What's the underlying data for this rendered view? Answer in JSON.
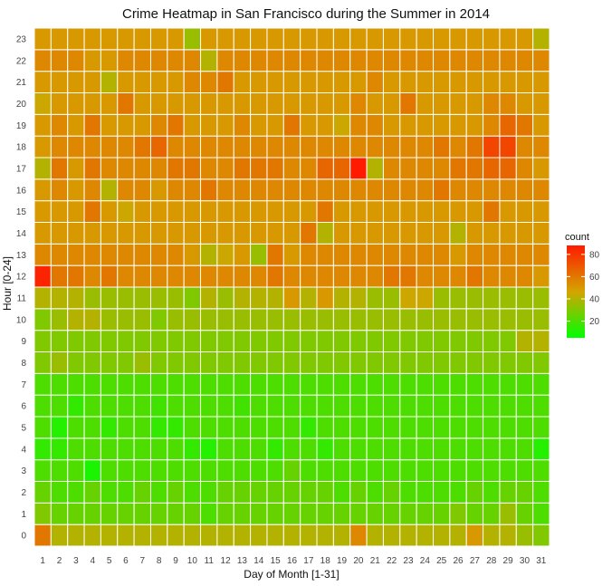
{
  "chart_data": {
    "type": "heatmap",
    "title": "Crime Heatmap in San Francisco during the Summer in 2014",
    "xlabel": "Day of Month [1-31]",
    "ylabel": "Hour [0-24]",
    "x": [
      1,
      2,
      3,
      4,
      5,
      6,
      7,
      8,
      9,
      10,
      11,
      12,
      13,
      14,
      15,
      16,
      17,
      18,
      19,
      20,
      21,
      22,
      23,
      24,
      25,
      26,
      27,
      28,
      29,
      30,
      31
    ],
    "y": [
      0,
      1,
      2,
      3,
      4,
      5,
      6,
      7,
      8,
      9,
      10,
      11,
      12,
      13,
      14,
      15,
      16,
      17,
      18,
      19,
      20,
      21,
      22,
      23
    ],
    "color_scale": {
      "low": "#00ff00",
      "mid": "#d4a400",
      "high": "#ff1a00",
      "domain": [
        5,
        88
      ],
      "legend_title": "count",
      "legend_ticks": [
        20,
        40,
        60,
        80
      ],
      "legend_position": "right"
    },
    "grid": false,
    "values": [
      [
        60,
        40,
        40,
        40,
        40,
        40,
        40,
        40,
        40,
        40,
        40,
        40,
        40,
        40,
        40,
        40,
        40,
        40,
        40,
        55,
        40,
        40,
        40,
        40,
        40,
        40,
        50,
        40,
        40,
        35,
        30
      ],
      [
        30,
        25,
        25,
        25,
        25,
        25,
        25,
        25,
        25,
        25,
        20,
        25,
        25,
        25,
        25,
        25,
        25,
        25,
        25,
        25,
        25,
        25,
        25,
        25,
        25,
        30,
        25,
        25,
        35,
        25,
        20
      ],
      [
        25,
        20,
        20,
        25,
        20,
        20,
        25,
        20,
        25,
        20,
        20,
        25,
        25,
        25,
        25,
        25,
        25,
        25,
        20,
        25,
        20,
        25,
        20,
        20,
        20,
        20,
        25,
        20,
        25,
        25,
        20
      ],
      [
        20,
        20,
        20,
        10,
        20,
        20,
        20,
        20,
        20,
        20,
        20,
        20,
        20,
        20,
        20,
        25,
        20,
        20,
        20,
        20,
        20,
        20,
        20,
        20,
        20,
        20,
        20,
        20,
        20,
        20,
        20
      ],
      [
        15,
        15,
        20,
        20,
        20,
        20,
        20,
        20,
        20,
        15,
        12,
        20,
        20,
        20,
        15,
        20,
        20,
        15,
        20,
        20,
        20,
        20,
        20,
        20,
        20,
        20,
        20,
        20,
        20,
        20,
        12
      ],
      [
        20,
        12,
        20,
        20,
        15,
        20,
        20,
        15,
        15,
        20,
        20,
        20,
        20,
        20,
        20,
        20,
        15,
        20,
        20,
        20,
        20,
        20,
        20,
        20,
        20,
        20,
        20,
        20,
        20,
        20,
        20
      ],
      [
        20,
        20,
        15,
        20,
        20,
        20,
        20,
        18,
        20,
        20,
        20,
        20,
        18,
        20,
        20,
        20,
        20,
        20,
        20,
        20,
        20,
        20,
        20,
        20,
        20,
        20,
        20,
        20,
        20,
        20,
        20
      ],
      [
        20,
        20,
        20,
        20,
        20,
        20,
        20,
        20,
        20,
        20,
        20,
        20,
        20,
        20,
        20,
        20,
        20,
        20,
        20,
        20,
        20,
        20,
        20,
        20,
        20,
        20,
        20,
        20,
        20,
        20,
        20
      ],
      [
        30,
        35,
        30,
        30,
        30,
        30,
        35,
        30,
        30,
        30,
        30,
        30,
        30,
        30,
        30,
        30,
        30,
        30,
        30,
        30,
        30,
        30,
        30,
        30,
        30,
        30,
        30,
        30,
        30,
        30,
        30
      ],
      [
        30,
        30,
        30,
        30,
        30,
        30,
        30,
        30,
        30,
        30,
        30,
        30,
        30,
        30,
        30,
        30,
        30,
        30,
        30,
        30,
        30,
        30,
        30,
        30,
        30,
        30,
        30,
        30,
        30,
        40,
        40
      ],
      [
        30,
        35,
        40,
        40,
        35,
        35,
        35,
        30,
        35,
        35,
        35,
        35,
        35,
        35,
        35,
        35,
        35,
        35,
        35,
        35,
        35,
        35,
        35,
        35,
        35,
        35,
        35,
        35,
        35,
        35,
        35
      ],
      [
        40,
        40,
        40,
        35,
        35,
        35,
        35,
        35,
        35,
        30,
        40,
        35,
        40,
        40,
        40,
        50,
        40,
        50,
        40,
        40,
        35,
        35,
        45,
        45,
        35,
        35,
        35,
        35,
        35,
        35,
        35
      ],
      [
        85,
        60,
        60,
        55,
        60,
        55,
        55,
        55,
        55,
        55,
        55,
        55,
        55,
        55,
        60,
        55,
        55,
        55,
        55,
        55,
        55,
        60,
        60,
        55,
        55,
        55,
        60,
        55,
        55,
        55,
        50
      ],
      [
        55,
        55,
        55,
        55,
        55,
        55,
        55,
        55,
        55,
        50,
        40,
        45,
        50,
        35,
        60,
        50,
        55,
        55,
        55,
        55,
        55,
        55,
        55,
        55,
        55,
        50,
        55,
        55,
        55,
        55,
        55
      ],
      [
        50,
        50,
        50,
        50,
        50,
        50,
        50,
        50,
        50,
        50,
        50,
        50,
        50,
        50,
        50,
        50,
        60,
        40,
        50,
        50,
        50,
        50,
        50,
        50,
        50,
        40,
        50,
        50,
        50,
        50,
        50
      ],
      [
        50,
        50,
        50,
        60,
        50,
        45,
        50,
        50,
        50,
        50,
        50,
        50,
        50,
        50,
        50,
        50,
        50,
        60,
        50,
        50,
        50,
        50,
        50,
        50,
        50,
        50,
        50,
        60,
        50,
        50,
        50
      ],
      [
        50,
        55,
        50,
        55,
        40,
        55,
        55,
        50,
        55,
        55,
        60,
        55,
        55,
        55,
        55,
        55,
        55,
        55,
        55,
        55,
        55,
        55,
        55,
        55,
        60,
        55,
        55,
        55,
        55,
        55,
        55
      ],
      [
        40,
        60,
        50,
        60,
        55,
        55,
        55,
        55,
        60,
        60,
        55,
        55,
        60,
        60,
        60,
        55,
        55,
        65,
        65,
        88,
        40,
        55,
        55,
        55,
        55,
        60,
        60,
        65,
        65,
        55,
        50
      ],
      [
        50,
        55,
        55,
        55,
        55,
        55,
        60,
        65,
        55,
        55,
        55,
        55,
        55,
        55,
        55,
        55,
        55,
        55,
        55,
        55,
        55,
        55,
        55,
        55,
        60,
        55,
        60,
        75,
        75,
        55,
        55
      ],
      [
        50,
        55,
        50,
        60,
        50,
        50,
        50,
        55,
        60,
        50,
        50,
        50,
        55,
        50,
        50,
        60,
        50,
        50,
        45,
        55,
        55,
        50,
        50,
        50,
        50,
        50,
        50,
        55,
        65,
        60,
        50
      ],
      [
        45,
        50,
        50,
        50,
        50,
        60,
        50,
        50,
        50,
        50,
        50,
        50,
        50,
        50,
        50,
        50,
        50,
        50,
        50,
        55,
        50,
        50,
        60,
        50,
        50,
        50,
        50,
        55,
        55,
        50,
        50
      ],
      [
        50,
        50,
        50,
        50,
        40,
        50,
        50,
        50,
        50,
        55,
        55,
        60,
        50,
        50,
        50,
        50,
        50,
        50,
        50,
        50,
        55,
        50,
        50,
        50,
        50,
        50,
        50,
        50,
        50,
        50,
        50
      ],
      [
        55,
        55,
        55,
        50,
        50,
        55,
        55,
        55,
        55,
        55,
        40,
        55,
        55,
        55,
        55,
        55,
        55,
        55,
        55,
        55,
        55,
        55,
        55,
        55,
        55,
        55,
        55,
        55,
        55,
        55,
        55
      ],
      [
        50,
        50,
        50,
        50,
        50,
        50,
        50,
        50,
        50,
        35,
        50,
        50,
        50,
        50,
        50,
        50,
        50,
        50,
        50,
        50,
        50,
        50,
        50,
        50,
        50,
        50,
        50,
        50,
        50,
        50,
        40
      ]
    ]
  }
}
